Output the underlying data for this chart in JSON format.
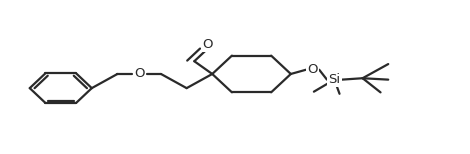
{
  "bg_color": "#ffffff",
  "line_color": "#2a2a2a",
  "line_width": 1.6,
  "fig_width": 4.7,
  "fig_height": 1.54,
  "dpi": 100,
  "xlim": [
    -0.05,
    1.08
  ],
  "ylim": [
    -0.15,
    1.1
  ]
}
